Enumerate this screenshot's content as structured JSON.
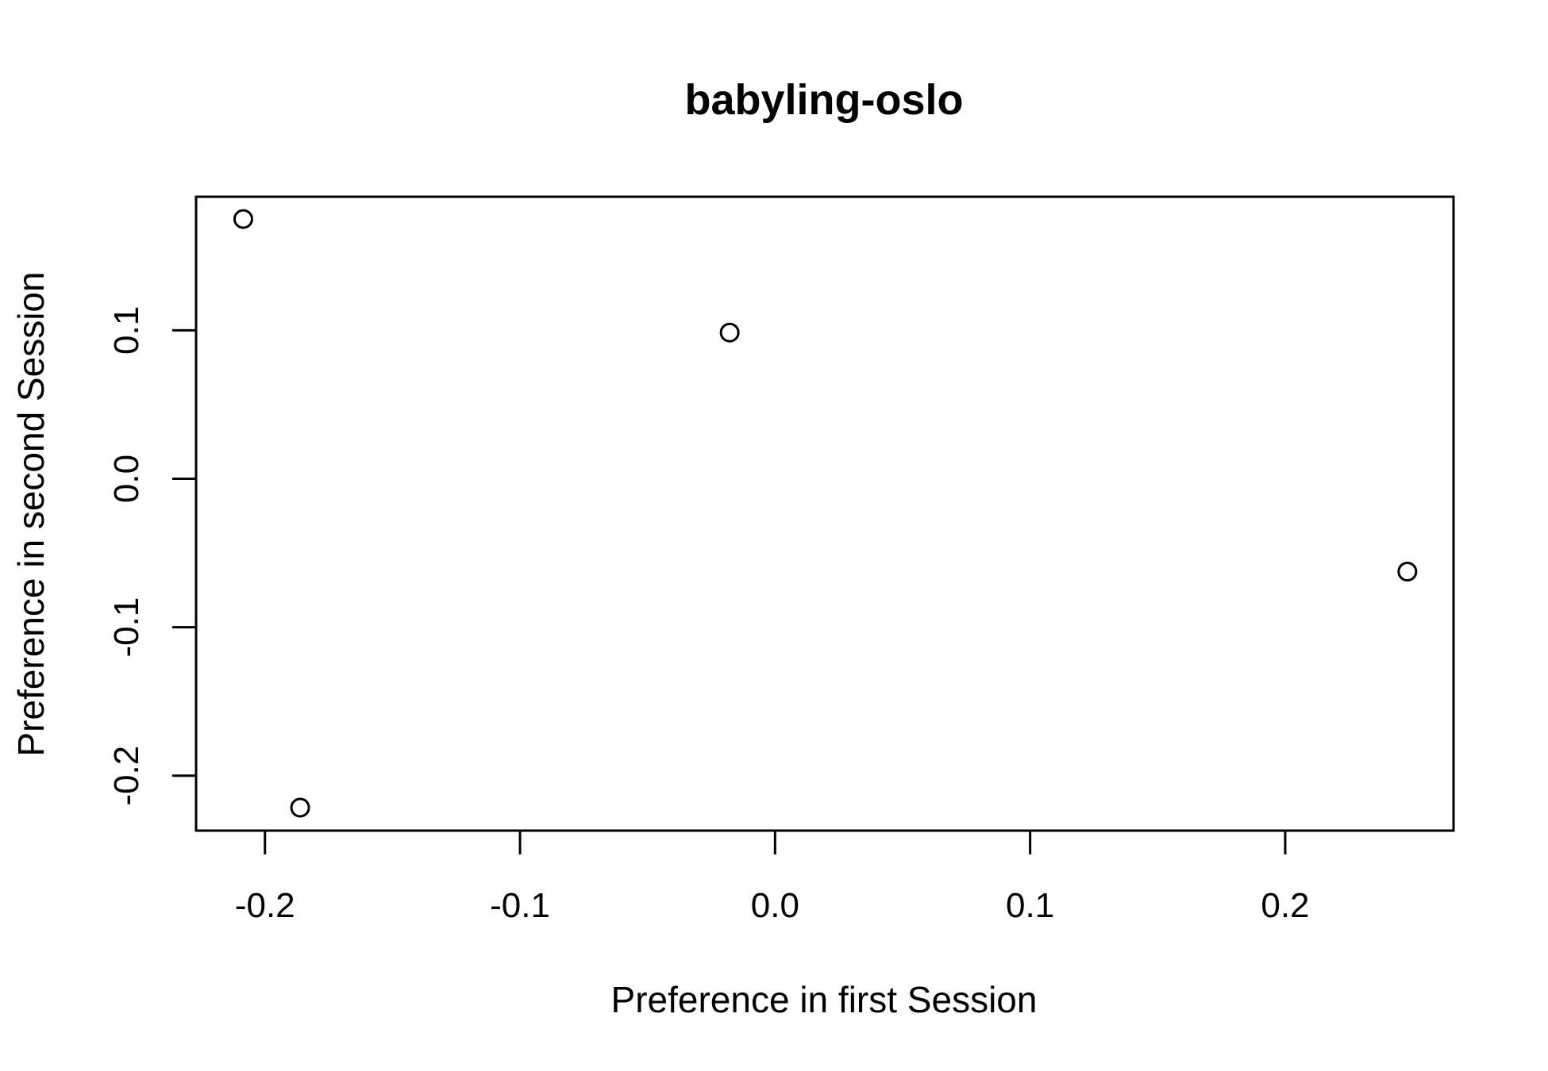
{
  "chart_data": {
    "type": "scatter",
    "title": "babyling-oslo",
    "xlabel": "Preference in first Session",
    "ylabel": "Preference in second Session",
    "xlim": [
      -0.227,
      0.266
    ],
    "ylim": [
      -0.237,
      0.19
    ],
    "x_ticks": [
      -0.2,
      -0.1,
      0.0,
      0.1,
      0.2
    ],
    "x_tick_labels": [
      "-0.2",
      "-0.1",
      "0.0",
      "0.1",
      "0.2"
    ],
    "y_ticks": [
      -0.2,
      -0.1,
      0.0,
      0.1
    ],
    "y_tick_labels": [
      "-0.2",
      "-0.1",
      "0.0",
      "0.1"
    ],
    "grid": false,
    "marker": "open-circle",
    "colors": {
      "point": "#000000",
      "axes": "#000000",
      "background": "#ffffff"
    },
    "x": [
      -0.2085,
      -0.1862,
      -0.0178,
      0.2479
    ],
    "y": [
      0.175,
      -0.2215,
      0.0985,
      -0.0625
    ]
  }
}
